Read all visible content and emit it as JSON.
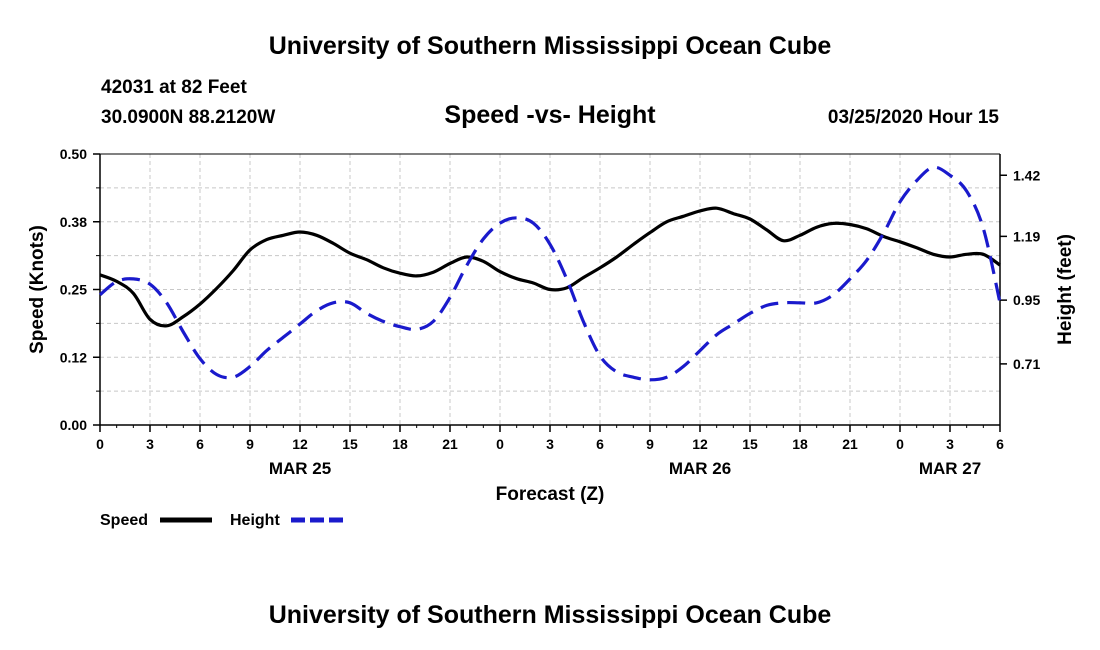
{
  "header": {
    "title": "University of Southern Mississippi Ocean Cube",
    "station": "42031 at 82 Feet",
    "coords": "30.0900N 88.2120W",
    "subtitle": "Speed -vs- Height",
    "datetime": "03/25/2020 Hour 15"
  },
  "footer": {
    "title": "University of Southern Mississippi Ocean Cube"
  },
  "colors": {
    "speed": "#000000",
    "height": "#1a1acc",
    "grid": "#c8c8c8"
  },
  "chart_data": {
    "type": "line",
    "title": "Speed -vs- Height",
    "xlabel": "Forecast (Z)",
    "ylabel": "Speed (Knots)",
    "y2label": "Height (feet)",
    "xlim": [
      0,
      54
    ],
    "ylim": [
      0,
      0.5
    ],
    "y2lim": [
      0.48,
      1.5
    ],
    "x_ticks": [
      0,
      3,
      6,
      9,
      12,
      15,
      18,
      21,
      24,
      27,
      30,
      33,
      36,
      39,
      42,
      45,
      48,
      51,
      54
    ],
    "x_tick_labels": [
      "0",
      "3",
      "6",
      "9",
      "12",
      "15",
      "18",
      "21",
      "0",
      "3",
      "6",
      "9",
      "12",
      "15",
      "18",
      "21",
      "0",
      "3",
      "6"
    ],
    "date_labels": [
      {
        "x": 12,
        "label": "MAR 25"
      },
      {
        "x": 36,
        "label": "MAR 26"
      },
      {
        "x": 51,
        "label": "MAR 27"
      }
    ],
    "y_ticks": [
      0.0,
      0.125,
      0.25,
      0.375,
      0.5
    ],
    "y_tick_labels": [
      "0.00",
      "0.12",
      "0.25",
      "0.38",
      "0.50"
    ],
    "y2_ticks": [
      0.71,
      0.95,
      1.19,
      1.42
    ],
    "y2_tick_labels": [
      "0.71",
      "0.95",
      "1.19",
      "1.42"
    ],
    "grid": true,
    "legend_position": "bottom-left",
    "series": [
      {
        "name": "Speed",
        "axis": "left",
        "style": "solid",
        "x": [
          0,
          1,
          2,
          3,
          4,
          5,
          6,
          7,
          8,
          9,
          10,
          11,
          12,
          13,
          14,
          15,
          16,
          17,
          18,
          19,
          20,
          21,
          22,
          23,
          24,
          25,
          26,
          27,
          28,
          29,
          30,
          31,
          32,
          33,
          34,
          35,
          36,
          37,
          38,
          39,
          40,
          41,
          42,
          43,
          44,
          45,
          46,
          47,
          48,
          49,
          50,
          51,
          52,
          53,
          54
        ],
        "values": [
          0.277,
          0.265,
          0.243,
          0.195,
          0.183,
          0.2,
          0.223,
          0.252,
          0.285,
          0.323,
          0.342,
          0.35,
          0.356,
          0.35,
          0.335,
          0.317,
          0.305,
          0.29,
          0.28,
          0.275,
          0.282,
          0.298,
          0.31,
          0.302,
          0.283,
          0.27,
          0.262,
          0.25,
          0.253,
          0.272,
          0.29,
          0.31,
          0.333,
          0.355,
          0.375,
          0.385,
          0.395,
          0.4,
          0.39,
          0.38,
          0.36,
          0.34,
          0.35,
          0.365,
          0.372,
          0.37,
          0.362,
          0.348,
          0.338,
          0.327,
          0.315,
          0.31,
          0.315,
          0.315,
          0.295
        ]
      },
      {
        "name": "Height",
        "axis": "right",
        "style": "dashed",
        "x": [
          0,
          1,
          2,
          3,
          4,
          5,
          6,
          7,
          8,
          9,
          10,
          11,
          12,
          13,
          14,
          15,
          16,
          17,
          18,
          19,
          20,
          21,
          22,
          23,
          24,
          25,
          26,
          27,
          28,
          29,
          30,
          31,
          32,
          33,
          34,
          35,
          36,
          37,
          38,
          39,
          40,
          41,
          42,
          43,
          44,
          45,
          46,
          47,
          48,
          49,
          50,
          51,
          52,
          53,
          54
        ],
        "values": [
          0.97,
          1.02,
          1.03,
          1.01,
          0.94,
          0.83,
          0.73,
          0.67,
          0.66,
          0.7,
          0.76,
          0.81,
          0.86,
          0.91,
          0.94,
          0.94,
          0.9,
          0.87,
          0.85,
          0.84,
          0.87,
          0.96,
          1.08,
          1.18,
          1.24,
          1.26,
          1.24,
          1.16,
          1.03,
          0.87,
          0.74,
          0.68,
          0.66,
          0.65,
          0.66,
          0.7,
          0.76,
          0.82,
          0.86,
          0.9,
          0.93,
          0.94,
          0.94,
          0.94,
          0.97,
          1.03,
          1.1,
          1.2,
          1.32,
          1.4,
          1.45,
          1.42,
          1.36,
          1.22,
          0.94
        ]
      }
    ],
    "legend": [
      {
        "label": "Speed",
        "series": 0
      },
      {
        "label": "Height",
        "series": 1
      }
    ]
  }
}
